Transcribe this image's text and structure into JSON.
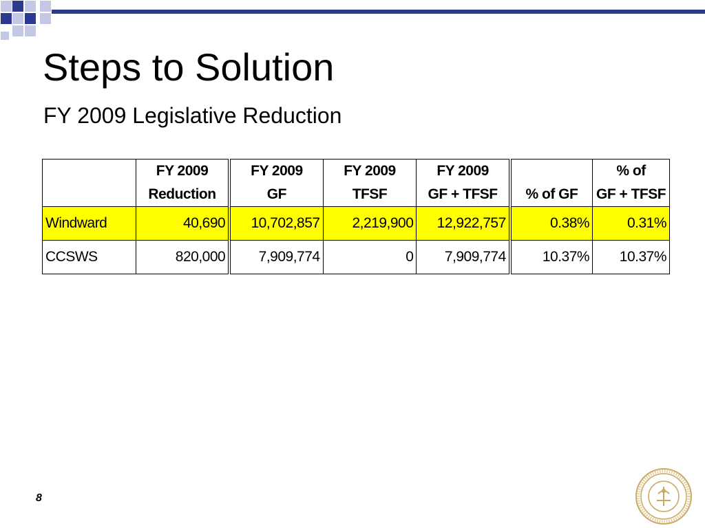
{
  "title": "Steps to Solution",
  "subtitle": "FY 2009 Legislative Reduction",
  "table": {
    "headers": [
      {
        "line1": "",
        "line2": ""
      },
      {
        "line1": "FY 2009",
        "line2": "Reduction"
      },
      {
        "line1": "FY 2009",
        "line2": "GF"
      },
      {
        "line1": "FY 2009",
        "line2": "TFSF"
      },
      {
        "line1": "FY 2009",
        "line2": "GF + TFSF"
      },
      {
        "line1": "",
        "line2": "% of GF"
      },
      {
        "line1": "% of",
        "line2": "GF + TFSF"
      }
    ],
    "rows": [
      {
        "label": "Windward",
        "reduction": "40,690",
        "gf": "10,702,857",
        "tfsf": "2,219,900",
        "gf_tfsf": "12,922,757",
        "pct_gf": "0.38%",
        "pct_gf_tfsf": "0.31%",
        "highlight": true
      },
      {
        "label": "CCSWS",
        "reduction": "820,000",
        "gf": "7,909,774",
        "tfsf": "0",
        "gf_tfsf": "7,909,774",
        "pct_gf": "10.37%",
        "pct_gf_tfsf": "10.37%",
        "highlight": false
      }
    ]
  },
  "page_number": "8",
  "colors": {
    "accent": "#2b3990",
    "accent_light": "#c4c8e4",
    "highlight": "#ffff00"
  },
  "icons": {
    "seal": "university-seal-icon"
  }
}
